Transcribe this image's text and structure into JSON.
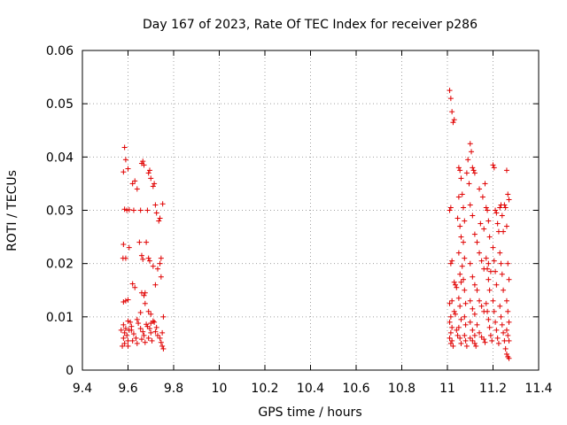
{
  "chart_data": {
    "type": "scatter",
    "title": "Day 167 of 2023, Rate Of TEC Index for receiver p286",
    "xlabel": "GPS time / hours",
    "ylabel": "ROTI / TECUs",
    "xlim": [
      9.4,
      11.4
    ],
    "ylim": [
      0,
      0.06
    ],
    "xticks": [
      9.4,
      9.6,
      9.8,
      10,
      10.2,
      10.4,
      10.6,
      10.8,
      11,
      11.2,
      11.4
    ],
    "xtick_labels": [
      "9.4",
      "9.6",
      "9.8",
      "10",
      "10.2",
      "10.4",
      "10.6",
      "10.8",
      "11",
      "11.2",
      "11.4"
    ],
    "yticks": [
      0,
      0.01,
      0.02,
      0.03,
      0.04,
      0.05,
      0.06
    ],
    "ytick_labels": [
      "0",
      "0.01",
      "0.02",
      "0.03",
      "0.04",
      "0.05",
      "0.06"
    ],
    "grid": true,
    "marker": "+",
    "color": "#e00000",
    "series": [
      {
        "name": "ROTI",
        "points": [
          [
            9.585,
            0.0418
          ],
          [
            9.59,
            0.0395
          ],
          [
            9.58,
            0.0372
          ],
          [
            9.6,
            0.0378
          ],
          [
            9.585,
            0.0302
          ],
          [
            9.595,
            0.03
          ],
          [
            9.605,
            0.0301
          ],
          [
            9.58,
            0.0236
          ],
          [
            9.578,
            0.021
          ],
          [
            9.59,
            0.021
          ],
          [
            9.58,
            0.0128
          ],
          [
            9.59,
            0.013
          ],
          [
            9.6,
            0.0132
          ],
          [
            9.58,
            0.0085
          ],
          [
            9.59,
            0.0078
          ],
          [
            9.585,
            0.007
          ],
          [
            9.595,
            0.0065
          ],
          [
            9.58,
            0.006
          ],
          [
            9.6,
            0.0055
          ],
          [
            9.585,
            0.005
          ],
          [
            9.605,
            0.0075
          ],
          [
            9.61,
            0.009
          ],
          [
            9.615,
            0.0082
          ],
          [
            9.62,
            0.035
          ],
          [
            9.63,
            0.0355
          ],
          [
            9.625,
            0.03
          ],
          [
            9.64,
            0.034
          ],
          [
            9.63,
            0.0155
          ],
          [
            9.62,
            0.0162
          ],
          [
            9.615,
            0.0075
          ],
          [
            9.625,
            0.0068
          ],
          [
            9.635,
            0.006
          ],
          [
            9.62,
            0.0055
          ],
          [
            9.64,
            0.0095
          ],
          [
            9.645,
            0.0088
          ],
          [
            9.65,
            0.024
          ],
          [
            9.66,
            0.0388
          ],
          [
            9.665,
            0.0392
          ],
          [
            9.67,
            0.0385
          ],
          [
            9.655,
            0.03
          ],
          [
            9.66,
            0.0215
          ],
          [
            9.665,
            0.0208
          ],
          [
            9.66,
            0.0145
          ],
          [
            9.67,
            0.014
          ],
          [
            9.675,
            0.0145
          ],
          [
            9.655,
            0.0078
          ],
          [
            9.665,
            0.0072
          ],
          [
            9.67,
            0.0065
          ],
          [
            9.66,
            0.0058
          ],
          [
            9.675,
            0.0052
          ],
          [
            9.68,
            0.024
          ],
          [
            9.69,
            0.037
          ],
          [
            9.695,
            0.0375
          ],
          [
            9.7,
            0.036
          ],
          [
            9.685,
            0.03
          ],
          [
            9.69,
            0.021
          ],
          [
            9.695,
            0.0205
          ],
          [
            9.69,
            0.011
          ],
          [
            9.7,
            0.0105
          ],
          [
            9.685,
            0.0082
          ],
          [
            9.695,
            0.0078
          ],
          [
            9.7,
            0.007
          ],
          [
            9.69,
            0.006
          ],
          [
            9.705,
            0.0055
          ],
          [
            9.71,
            0.0345
          ],
          [
            9.715,
            0.035
          ],
          [
            9.72,
            0.031
          ],
          [
            9.725,
            0.0295
          ],
          [
            9.71,
            0.0195
          ],
          [
            9.72,
            0.016
          ],
          [
            9.715,
            0.009
          ],
          [
            9.725,
            0.008
          ],
          [
            9.72,
            0.0072
          ],
          [
            9.73,
            0.0065
          ],
          [
            9.735,
            0.028
          ],
          [
            9.74,
            0.0285
          ],
          [
            9.745,
            0.021
          ],
          [
            9.74,
            0.02
          ],
          [
            9.745,
            0.0175
          ],
          [
            9.74,
            0.006
          ],
          [
            9.745,
            0.0052
          ],
          [
            9.75,
            0.0045
          ],
          [
            9.752,
            0.0312
          ],
          [
            9.755,
            0.01
          ],
          [
            9.755,
            0.004
          ],
          [
            9.75,
            0.007
          ],
          [
            9.7,
            0.0088
          ],
          [
            9.71,
            0.0092
          ],
          [
            9.68,
            0.0086
          ],
          [
            9.6,
            0.0092
          ],
          [
            9.64,
            0.005
          ],
          [
            9.6,
            0.0045
          ],
          [
            9.57,
            0.0075
          ],
          [
            9.575,
            0.0045
          ],
          [
            9.655,
            0.0108
          ],
          [
            9.675,
            0.0125
          ],
          [
            9.73,
            0.019
          ],
          [
            9.605,
            0.023
          ],
          [
            11.01,
            0.0525
          ],
          [
            11.015,
            0.051
          ],
          [
            11.02,
            0.0485
          ],
          [
            11.025,
            0.0465
          ],
          [
            11.03,
            0.047
          ],
          [
            11.01,
            0.03
          ],
          [
            11.015,
            0.0305
          ],
          [
            11.02,
            0.0205
          ],
          [
            11.015,
            0.02
          ],
          [
            11.01,
            0.0125
          ],
          [
            11.02,
            0.013
          ],
          [
            11.015,
            0.01
          ],
          [
            11.01,
            0.009
          ],
          [
            11.02,
            0.008
          ],
          [
            11.015,
            0.007
          ],
          [
            11.01,
            0.006
          ],
          [
            11.02,
            0.0055
          ],
          [
            11.015,
            0.005
          ],
          [
            11.025,
            0.0045
          ],
          [
            11.03,
            0.0165
          ],
          [
            11.035,
            0.016
          ],
          [
            11.04,
            0.0155
          ],
          [
            11.03,
            0.011
          ],
          [
            11.035,
            0.0105
          ],
          [
            11.04,
            0.0075
          ],
          [
            11.045,
            0.0065
          ],
          [
            11.05,
            0.038
          ],
          [
            11.055,
            0.0375
          ],
          [
            11.06,
            0.036
          ],
          [
            11.05,
            0.0325
          ],
          [
            11.055,
            0.027
          ],
          [
            11.06,
            0.025
          ],
          [
            11.05,
            0.022
          ],
          [
            11.055,
            0.018
          ],
          [
            11.06,
            0.0165
          ],
          [
            11.05,
            0.0135
          ],
          [
            11.055,
            0.012
          ],
          [
            11.06,
            0.0095
          ],
          [
            11.05,
            0.008
          ],
          [
            11.055,
            0.006
          ],
          [
            11.06,
            0.005
          ],
          [
            11.065,
            0.033
          ],
          [
            11.07,
            0.0305
          ],
          [
            11.075,
            0.028
          ],
          [
            11.07,
            0.024
          ],
          [
            11.075,
            0.021
          ],
          [
            11.07,
            0.017
          ],
          [
            11.075,
            0.015
          ],
          [
            11.08,
            0.0125
          ],
          [
            11.075,
            0.01
          ],
          [
            11.08,
            0.0085
          ],
          [
            11.075,
            0.0065
          ],
          [
            11.08,
            0.0055
          ],
          [
            11.085,
            0.0045
          ],
          [
            11.09,
            0.0395
          ],
          [
            11.1,
            0.0425
          ],
          [
            11.105,
            0.041
          ],
          [
            11.11,
            0.038
          ],
          [
            11.115,
            0.0375
          ],
          [
            11.12,
            0.037
          ],
          [
            11.1,
            0.031
          ],
          [
            11.11,
            0.029
          ],
          [
            11.12,
            0.0255
          ],
          [
            11.1,
            0.02
          ],
          [
            11.11,
            0.0175
          ],
          [
            11.12,
            0.016
          ],
          [
            11.1,
            0.013
          ],
          [
            11.11,
            0.0115
          ],
          [
            11.12,
            0.0105
          ],
          [
            11.1,
            0.009
          ],
          [
            11.11,
            0.0075
          ],
          [
            11.12,
            0.0065
          ],
          [
            11.1,
            0.006
          ],
          [
            11.11,
            0.0055
          ],
          [
            11.12,
            0.005
          ],
          [
            11.125,
            0.0045
          ],
          [
            11.13,
            0.024
          ],
          [
            11.14,
            0.022
          ],
          [
            11.15,
            0.0205
          ],
          [
            11.16,
            0.019
          ],
          [
            11.13,
            0.015
          ],
          [
            11.14,
            0.013
          ],
          [
            11.15,
            0.012
          ],
          [
            11.16,
            0.011
          ],
          [
            11.13,
            0.0085
          ],
          [
            11.14,
            0.007
          ],
          [
            11.15,
            0.0062
          ],
          [
            11.16,
            0.0058
          ],
          [
            11.165,
            0.0052
          ],
          [
            11.17,
            0.0305
          ],
          [
            11.175,
            0.03
          ],
          [
            11.18,
            0.028
          ],
          [
            11.185,
            0.025
          ],
          [
            11.17,
            0.021
          ],
          [
            11.175,
            0.019
          ],
          [
            11.18,
            0.017
          ],
          [
            11.185,
            0.015
          ],
          [
            11.17,
            0.0125
          ],
          [
            11.175,
            0.011
          ],
          [
            11.18,
            0.0095
          ],
          [
            11.185,
            0.008
          ],
          [
            11.19,
            0.0065
          ],
          [
            11.195,
            0.0055
          ],
          [
            11.2,
            0.0385
          ],
          [
            11.205,
            0.038
          ],
          [
            11.21,
            0.03
          ],
          [
            11.215,
            0.0295
          ],
          [
            11.2,
            0.023
          ],
          [
            11.205,
            0.0205
          ],
          [
            11.21,
            0.0185
          ],
          [
            11.215,
            0.016
          ],
          [
            11.2,
            0.013
          ],
          [
            11.205,
            0.011
          ],
          [
            11.21,
            0.009
          ],
          [
            11.215,
            0.0075
          ],
          [
            11.22,
            0.006
          ],
          [
            11.225,
            0.005
          ],
          [
            11.23,
            0.0305
          ],
          [
            11.235,
            0.031
          ],
          [
            11.24,
            0.029
          ],
          [
            11.245,
            0.026
          ],
          [
            11.23,
            0.022
          ],
          [
            11.235,
            0.02
          ],
          [
            11.24,
            0.018
          ],
          [
            11.245,
            0.015
          ],
          [
            11.23,
            0.012
          ],
          [
            11.235,
            0.01
          ],
          [
            11.24,
            0.0085
          ],
          [
            11.245,
            0.007
          ],
          [
            11.25,
            0.0055
          ],
          [
            11.255,
            0.004
          ],
          [
            11.26,
            0.003
          ],
          [
            11.265,
            0.0025
          ],
          [
            11.27,
            0.0022
          ],
          [
            11.26,
            0.0375
          ],
          [
            11.265,
            0.033
          ],
          [
            11.27,
            0.032
          ],
          [
            11.255,
            0.0305
          ],
          [
            11.26,
            0.027
          ],
          [
            11.265,
            0.02
          ],
          [
            11.27,
            0.017
          ],
          [
            11.26,
            0.013
          ],
          [
            11.265,
            0.011
          ],
          [
            11.27,
            0.009
          ],
          [
            11.26,
            0.0075
          ],
          [
            11.265,
            0.0065
          ],
          [
            11.27,
            0.0055
          ],
          [
            11.14,
            0.034
          ],
          [
            11.155,
            0.0325
          ],
          [
            11.165,
            0.035
          ],
          [
            11.145,
            0.0275
          ],
          [
            11.16,
            0.0265
          ],
          [
            11.085,
            0.037
          ],
          [
            11.095,
            0.035
          ],
          [
            11.18,
            0.02
          ],
          [
            11.19,
            0.0185
          ],
          [
            11.22,
            0.0275
          ],
          [
            11.225,
            0.026
          ],
          [
            11.25,
            0.031
          ],
          [
            11.045,
            0.0285
          ],
          [
            11.065,
            0.0195
          ]
        ]
      }
    ]
  }
}
